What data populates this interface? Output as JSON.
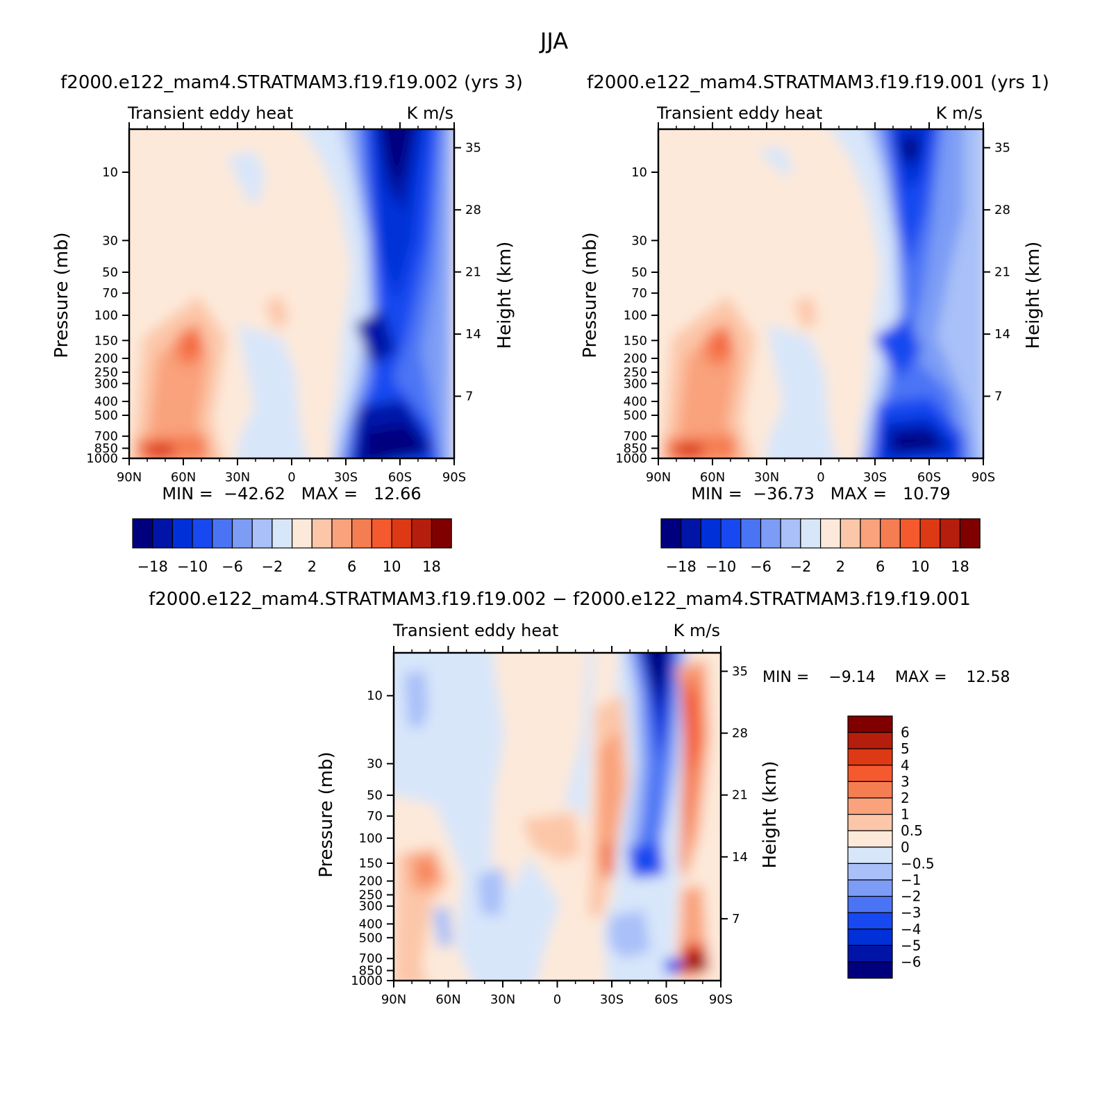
{
  "figure_title": "JJA",
  "colors": {
    "seq16": [
      "#00007f",
      "#0015a8",
      "#0030d8",
      "#1848f0",
      "#4b74f5",
      "#7c9cf5",
      "#a9c0f8",
      "#d8e6fa",
      "#fde9d9",
      "#fcc6a8",
      "#f9a27c",
      "#f57d52",
      "#f45a2e",
      "#dc3914",
      "#b51e0c",
      "#800000"
    ],
    "diff16": [
      "#00007f",
      "#0015a8",
      "#0030d8",
      "#1848f0",
      "#4b74f5",
      "#7c9cf5",
      "#a9c0f8",
      "#d8e6fa",
      "#fde9d9",
      "#fcc6a8",
      "#f9a27c",
      "#f57d52",
      "#f45a2e",
      "#dc3914",
      "#b51e0c",
      "#800000"
    ]
  },
  "chart_data": [
    {
      "type": "contour",
      "id": "panel-a",
      "title": "f2000.e122_mam4.STRATMAM3.f19.f19.002 (yrs 3)",
      "subtitle_left": "Transient eddy heat",
      "subtitle_right": "K m/s",
      "xlabel": "",
      "ylabel": "Pressure (mb)",
      "y2label": "Height (km)",
      "x_ticks": [
        "90N",
        "60N",
        "30N",
        "0",
        "30S",
        "60S",
        "90S"
      ],
      "x_tick_values": [
        90,
        60,
        30,
        0,
        -30,
        -60,
        -90
      ],
      "p_ticks": [
        10,
        30,
        50,
        70,
        100,
        150,
        200,
        250,
        300,
        400,
        500,
        700,
        850,
        1000
      ],
      "h_ticks": [
        35,
        28,
        21,
        14,
        7
      ],
      "ylim_mb": [
        1000,
        5
      ],
      "stats": "MIN =  −42.62   MAX =   12.66",
      "colorbar_labels": [
        "−18",
        "−10",
        "−6",
        "−2",
        "2",
        "6",
        "10",
        "18"
      ],
      "min": -42.62,
      "max": 12.66
    },
    {
      "type": "contour",
      "id": "panel-b",
      "title": "f2000.e122_mam4.STRATMAM3.f19.f19.001 (yrs 1)",
      "subtitle_left": "Transient eddy heat",
      "subtitle_right": "K m/s",
      "xlabel": "",
      "ylabel": "Pressure (mb)",
      "y2label": "Height (km)",
      "x_ticks": [
        "90N",
        "60N",
        "30N",
        "0",
        "30S",
        "60S",
        "90S"
      ],
      "x_tick_values": [
        90,
        60,
        30,
        0,
        -30,
        -60,
        -90
      ],
      "p_ticks": [
        10,
        30,
        50,
        70,
        100,
        150,
        200,
        250,
        300,
        400,
        500,
        700,
        850,
        1000
      ],
      "h_ticks": [
        35,
        28,
        21,
        14,
        7
      ],
      "ylim_mb": [
        1000,
        5
      ],
      "stats": "MIN =  −36.73   MAX =   10.79",
      "colorbar_labels": [
        "−18",
        "−10",
        "−6",
        "−2",
        "2",
        "6",
        "10",
        "18"
      ],
      "min": -36.73,
      "max": 10.79
    },
    {
      "type": "contour",
      "id": "panel-diff",
      "title": "f2000.e122_mam4.STRATMAM3.f19.f19.002 − f2000.e122_mam4.STRATMAM3.f19.f19.001",
      "subtitle_left": "Transient eddy heat",
      "subtitle_right": "K m/s",
      "xlabel": "",
      "ylabel": "Pressure (mb)",
      "y2label": "Height (km)",
      "x_ticks": [
        "90N",
        "60N",
        "30N",
        "0",
        "30S",
        "60S",
        "90S"
      ],
      "x_tick_values": [
        90,
        60,
        30,
        0,
        -30,
        -60,
        -90
      ],
      "p_ticks": [
        10,
        30,
        50,
        70,
        100,
        150,
        200,
        250,
        300,
        400,
        500,
        700,
        850,
        1000
      ],
      "h_ticks": [
        35,
        28,
        21,
        14,
        7
      ],
      "ylim_mb": [
        1000,
        5
      ],
      "stats_min": "MIN =    −9.14",
      "stats_max": "MAX =    12.58",
      "colorbar_labels": [
        "6",
        "5",
        "4",
        "3",
        "2",
        "1",
        "0.5",
        "0",
        "−0.5",
        "−1",
        "−2",
        "−3",
        "−4",
        "−5",
        "−6"
      ],
      "min": -9.14,
      "max": 12.58
    }
  ]
}
